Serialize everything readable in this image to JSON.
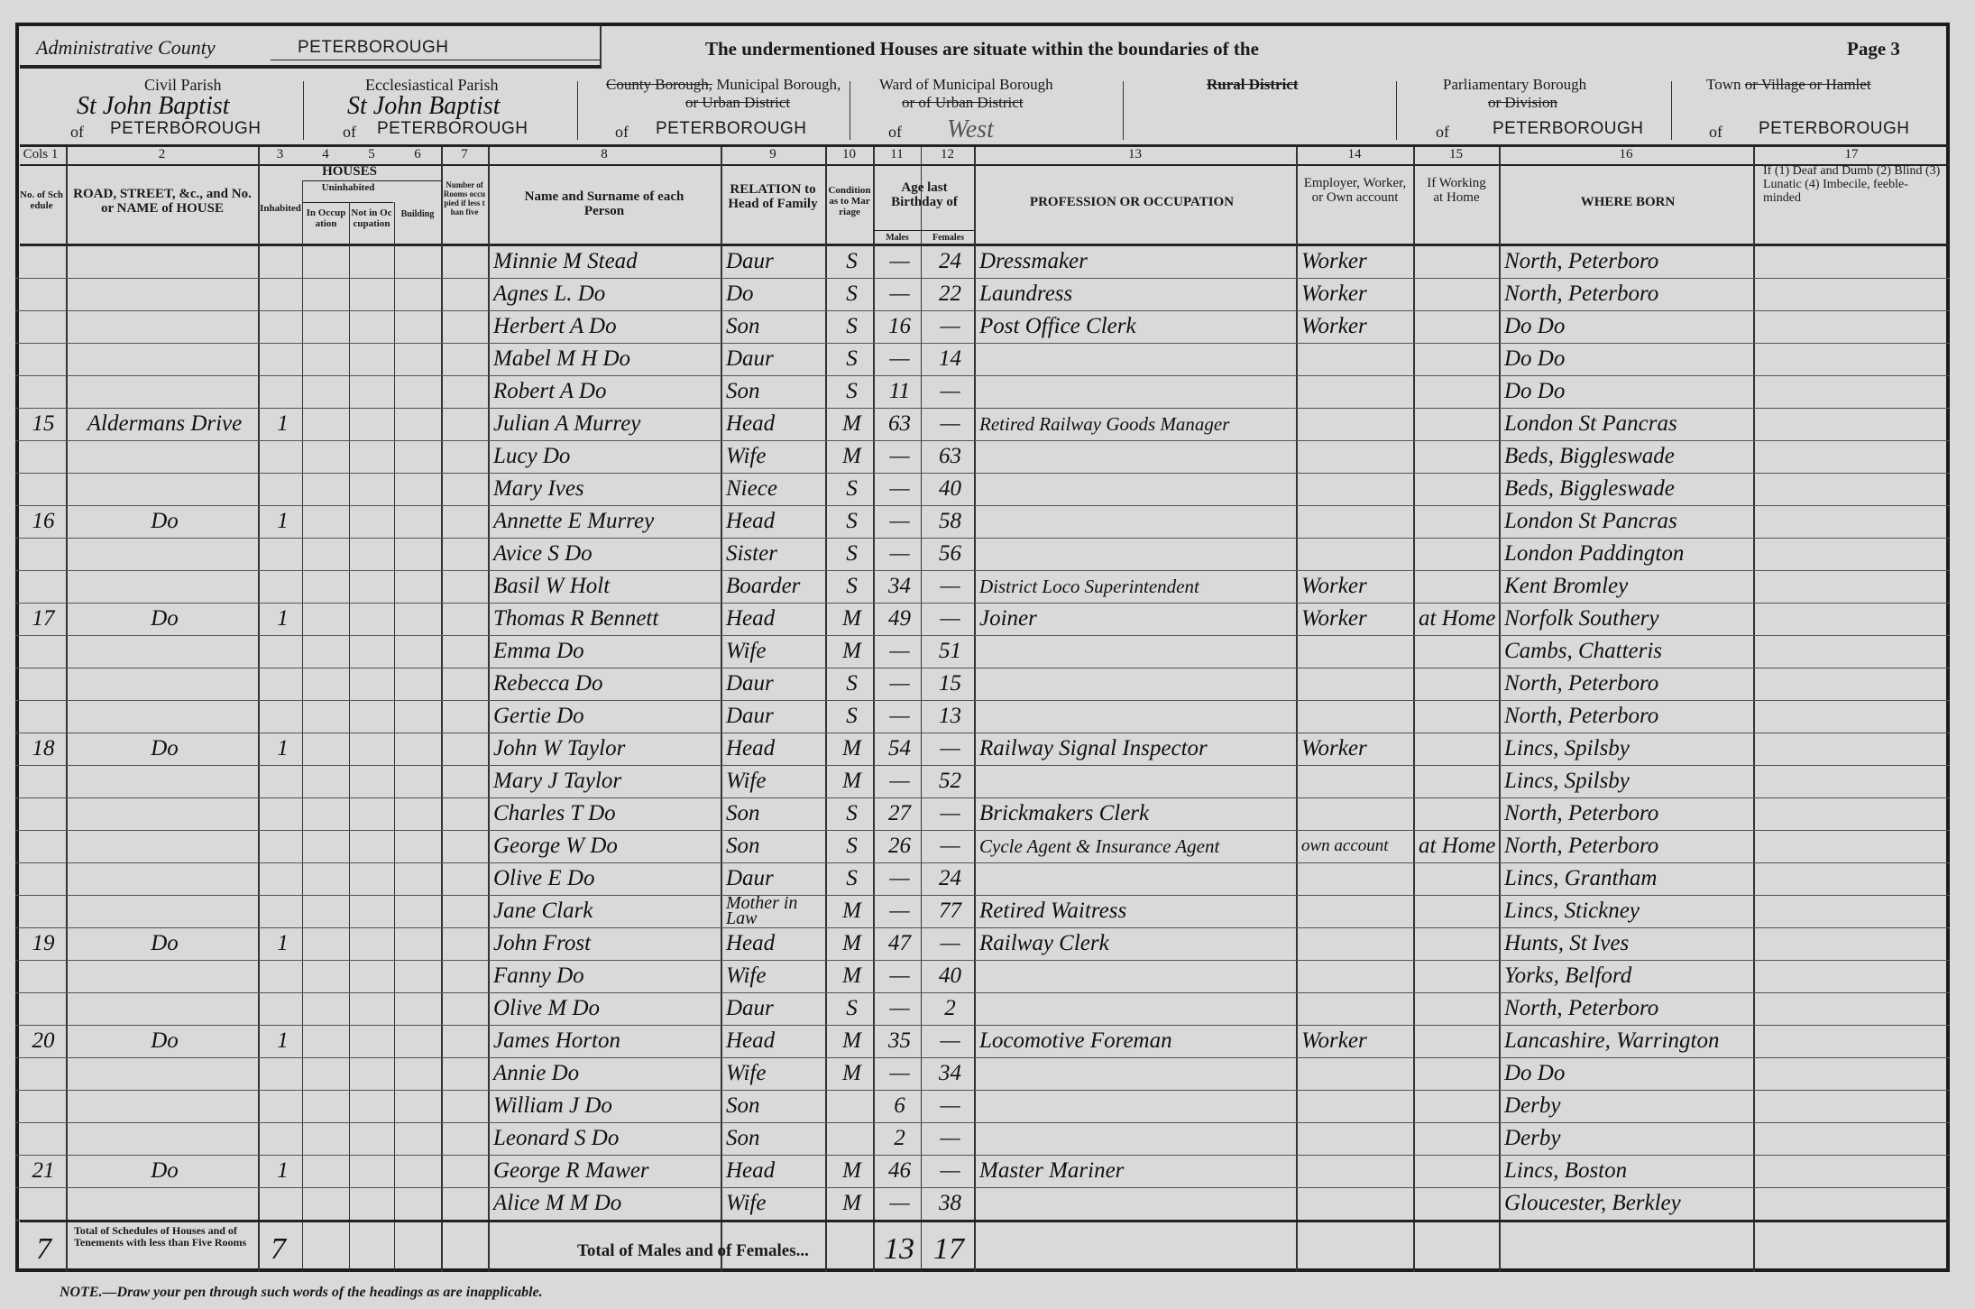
{
  "header": {
    "admin_county_label": "Administrative County",
    "admin_county_value": "PETERBOROUGH",
    "intro": "The undermentioned Houses are situate within the boundaries of the",
    "page": "Page 3",
    "civil_parish_label": "Civil Parish",
    "civil_parish_value": "St John Baptist",
    "civil_parish_of": "PETERBOROUGH",
    "eccl_parish_label": "Ecclesiastical Parish",
    "eccl_parish_value": "St John Baptist",
    "eccl_parish_of": "PETERBOROUGH",
    "borough_label_struck": "County Borough,",
    "borough_label": "Municipal Borough,",
    "borough_label_struck2": "or Urban District",
    "borough_of": "PETERBOROUGH",
    "ward_label": "Ward of Municipal Borough",
    "ward_label_struck": "or of Urban District",
    "ward_of": "West",
    "rural_label_struck": "Rural District",
    "parl_label": "Parliamentary Borough",
    "parl_label_struck": "or Division",
    "parl_of": "PETERBOROUGH",
    "town_label": "Town",
    "town_label_struck": "or Village or Hamlet",
    "town_of": "PETERBOROUGH",
    "of": "of"
  },
  "columns": {
    "numbers": [
      "Cols 1",
      "2",
      "3",
      "4",
      "5",
      "6",
      "7",
      "8",
      "9",
      "10",
      "11",
      "12",
      "13",
      "14",
      "15",
      "16",
      "17"
    ],
    "schedule": "No. of Schedule",
    "road": "ROAD, STREET, &c., and No. or NAME of HOUSE",
    "houses": "HOUSES",
    "inhabited": "Inhabited",
    "uninhabited": "Uninhabited",
    "in_occupation": "In Occupation",
    "not_in_occupation": "Not in Occupation",
    "building": "Building",
    "rooms": "Number of Rooms occupied if less than five",
    "name": "Name and Surname of each Person",
    "relation": "RELATION to Head of Family",
    "condition": "Condition as to Marriage",
    "age": "Age last Birthday of",
    "males": "Males",
    "females": "Females",
    "occupation": "PROFESSION OR OCCUPATION",
    "employment": "Employer, Worker, or Own account",
    "at_home": "If Working at Home",
    "born": "WHERE BORN",
    "infirmity": "If (1) Deaf and Dumb (2) Blind (3) Lunatic (4) Imbecile, feeble-minded"
  },
  "rows": [
    {
      "schedule": "",
      "address": "",
      "inhabited": "",
      "name": "Minnie M Stead",
      "relation": "Daur",
      "condition": "S",
      "male": "—",
      "female": "24",
      "occupation": "Dressmaker",
      "employment": "Worker",
      "at_home": "",
      "born": "North, Peterboro"
    },
    {
      "schedule": "",
      "address": "",
      "inhabited": "",
      "name": "Agnes L. Do",
      "relation": "Do",
      "condition": "S",
      "male": "—",
      "female": "22",
      "occupation": "Laundress",
      "employment": "Worker",
      "at_home": "",
      "born": "North, Peterboro"
    },
    {
      "schedule": "",
      "address": "",
      "inhabited": "",
      "name": "Herbert A Do",
      "relation": "Son",
      "condition": "S",
      "male": "16",
      "female": "—",
      "occupation": "Post Office Clerk",
      "employment": "Worker",
      "at_home": "",
      "born": "Do      Do"
    },
    {
      "schedule": "",
      "address": "",
      "inhabited": "",
      "name": "Mabel M H Do",
      "relation": "Daur",
      "condition": "S",
      "male": "—",
      "female": "14",
      "occupation": "",
      "employment": "",
      "at_home": "",
      "born": "Do      Do"
    },
    {
      "schedule": "",
      "address": "",
      "inhabited": "",
      "name": "Robert A Do",
      "relation": "Son",
      "condition": "S",
      "male": "11",
      "female": "—",
      "occupation": "",
      "employment": "",
      "at_home": "",
      "born": "Do      Do"
    },
    {
      "schedule": "15",
      "address": "Aldermans Drive",
      "inhabited": "1",
      "name": "Julian A Murrey",
      "relation": "Head",
      "condition": "M",
      "male": "63",
      "female": "—",
      "occupation": "Retired Railway Goods Manager",
      "employment": "",
      "at_home": "",
      "born": "London St Pancras"
    },
    {
      "schedule": "",
      "address": "",
      "inhabited": "",
      "name": "Lucy Do",
      "relation": "Wife",
      "condition": "M",
      "male": "—",
      "female": "63",
      "occupation": "",
      "employment": "",
      "at_home": "",
      "born": "Beds, Biggleswade"
    },
    {
      "schedule": "",
      "address": "",
      "inhabited": "",
      "name": "Mary Ives",
      "relation": "Niece",
      "condition": "S",
      "male": "—",
      "female": "40",
      "occupation": "",
      "employment": "",
      "at_home": "",
      "born": "Beds, Biggleswade"
    },
    {
      "schedule": "16",
      "address": "Do",
      "inhabited": "1",
      "name": "Annette E Murrey",
      "relation": "Head",
      "condition": "S",
      "male": "—",
      "female": "58",
      "occupation": "",
      "employment": "",
      "at_home": "",
      "born": "London St Pancras"
    },
    {
      "schedule": "",
      "address": "",
      "inhabited": "",
      "name": "Avice S Do",
      "relation": "Sister",
      "condition": "S",
      "male": "—",
      "female": "56",
      "occupation": "",
      "employment": "",
      "at_home": "",
      "born": "London Paddington"
    },
    {
      "schedule": "",
      "address": "",
      "inhabited": "",
      "name": "Basil W Holt",
      "relation": "Boarder",
      "condition": "S",
      "male": "34",
      "female": "—",
      "occupation": "District Loco Superintendent",
      "employment": "Worker",
      "at_home": "",
      "born": "Kent Bromley"
    },
    {
      "schedule": "17",
      "address": "Do",
      "inhabited": "1",
      "name": "Thomas R Bennett",
      "relation": "Head",
      "condition": "M",
      "male": "49",
      "female": "—",
      "occupation": "Joiner",
      "employment": "Worker",
      "at_home": "at Home",
      "born": "Norfolk Southery"
    },
    {
      "schedule": "",
      "address": "",
      "inhabited": "",
      "name": "Emma Do",
      "relation": "Wife",
      "condition": "M",
      "male": "—",
      "female": "51",
      "occupation": "",
      "employment": "",
      "at_home": "",
      "born": "Cambs, Chatteris"
    },
    {
      "schedule": "",
      "address": "",
      "inhabited": "",
      "name": "Rebecca Do",
      "relation": "Daur",
      "condition": "S",
      "male": "—",
      "female": "15",
      "occupation": "",
      "employment": "",
      "at_home": "",
      "born": "North, Peterboro"
    },
    {
      "schedule": "",
      "address": "",
      "inhabited": "",
      "name": "Gertie Do",
      "relation": "Daur",
      "condition": "S",
      "male": "—",
      "female": "13",
      "occupation": "",
      "employment": "",
      "at_home": "",
      "born": "North, Peterboro"
    },
    {
      "schedule": "18",
      "address": "Do",
      "inhabited": "1",
      "name": "John W Taylor",
      "relation": "Head",
      "condition": "M",
      "male": "54",
      "female": "—",
      "occupation": "Railway Signal Inspector",
      "employment": "Worker",
      "at_home": "",
      "born": "Lincs, Spilsby"
    },
    {
      "schedule": "",
      "address": "",
      "inhabited": "",
      "name": "Mary J Taylor",
      "relation": "Wife",
      "condition": "M",
      "male": "—",
      "female": "52",
      "occupation": "",
      "employment": "",
      "at_home": "",
      "born": "Lincs, Spilsby"
    },
    {
      "schedule": "",
      "address": "",
      "inhabited": "",
      "name": "Charles T Do",
      "relation": "Son",
      "condition": "S",
      "male": "27",
      "female": "—",
      "occupation": "Brickmakers Clerk",
      "employment": "",
      "at_home": "",
      "born": "North, Peterboro"
    },
    {
      "schedule": "",
      "address": "",
      "inhabited": "",
      "name": "George W Do",
      "relation": "Son",
      "condition": "S",
      "male": "26",
      "female": "—",
      "occupation": "Cycle Agent & Insurance Agent",
      "employment": "own account",
      "at_home": "at Home",
      "born": "North, Peterboro"
    },
    {
      "schedule": "",
      "address": "",
      "inhabited": "",
      "name": "Olive E Do",
      "relation": "Daur",
      "condition": "S",
      "male": "—",
      "female": "24",
      "occupation": "",
      "employment": "",
      "at_home": "",
      "born": "Lincs, Grantham"
    },
    {
      "schedule": "",
      "address": "",
      "inhabited": "",
      "name": "Jane Clark",
      "relation": "Mother in Law",
      "condition": "M",
      "male": "—",
      "female": "77",
      "occupation": "Retired Waitress",
      "employment": "",
      "at_home": "",
      "born": "Lincs, Stickney"
    },
    {
      "schedule": "19",
      "address": "Do",
      "inhabited": "1",
      "name": "John Frost",
      "relation": "Head",
      "condition": "M",
      "male": "47",
      "female": "—",
      "occupation": "Railway Clerk",
      "employment": "",
      "at_home": "",
      "born": "Hunts, St Ives"
    },
    {
      "schedule": "",
      "address": "",
      "inhabited": "",
      "name": "Fanny Do",
      "relation": "Wife",
      "condition": "M",
      "male": "—",
      "female": "40",
      "occupation": "",
      "employment": "",
      "at_home": "",
      "born": "Yorks, Belford"
    },
    {
      "schedule": "",
      "address": "",
      "inhabited": "",
      "name": "Olive M Do",
      "relation": "Daur",
      "condition": "S",
      "male": "—",
      "female": "2",
      "occupation": "",
      "employment": "",
      "at_home": "",
      "born": "North, Peterboro"
    },
    {
      "schedule": "20",
      "address": "Do",
      "inhabited": "1",
      "name": "James Horton",
      "relation": "Head",
      "condition": "M",
      "male": "35",
      "female": "—",
      "occupation": "Locomotive Foreman",
      "employment": "Worker",
      "at_home": "",
      "born": "Lancashire, Warrington"
    },
    {
      "schedule": "",
      "address": "",
      "inhabited": "",
      "name": "Annie Do",
      "relation": "Wife",
      "condition": "M",
      "male": "—",
      "female": "34",
      "occupation": "",
      "employment": "",
      "at_home": "",
      "born": "Do      Do"
    },
    {
      "schedule": "",
      "address": "",
      "inhabited": "",
      "name": "William J Do",
      "relation": "Son",
      "condition": "",
      "male": "6",
      "female": "—",
      "occupation": "",
      "employment": "",
      "at_home": "",
      "born": "Derby"
    },
    {
      "schedule": "",
      "address": "",
      "inhabited": "",
      "name": "Leonard S Do",
      "relation": "Son",
      "condition": "",
      "male": "2",
      "female": "—",
      "occupation": "",
      "employment": "",
      "at_home": "",
      "born": "Derby"
    },
    {
      "schedule": "21",
      "address": "Do",
      "inhabited": "1",
      "name": "George R Mawer",
      "relation": "Head",
      "condition": "M",
      "male": "46",
      "female": "—",
      "occupation": "Master Mariner",
      "employment": "",
      "at_home": "",
      "born": "Lincs, Boston"
    },
    {
      "schedule": "",
      "address": "",
      "inhabited": "",
      "name": "Alice M M Do",
      "relation": "Wife",
      "condition": "M",
      "male": "—",
      "female": "38",
      "occupation": "",
      "employment": "",
      "at_home": "",
      "born": "Gloucester, Berkley"
    }
  ],
  "totals": {
    "schedules": "7",
    "schedules_label": "Total of Schedules of Houses and of Tenements with less than Five Rooms",
    "inhabited": "7",
    "label": "Total of Males and of Females...",
    "males": "13",
    "females": "17"
  },
  "note": "NOTE.—Draw your pen through such words of the headings as are inapplicable."
}
